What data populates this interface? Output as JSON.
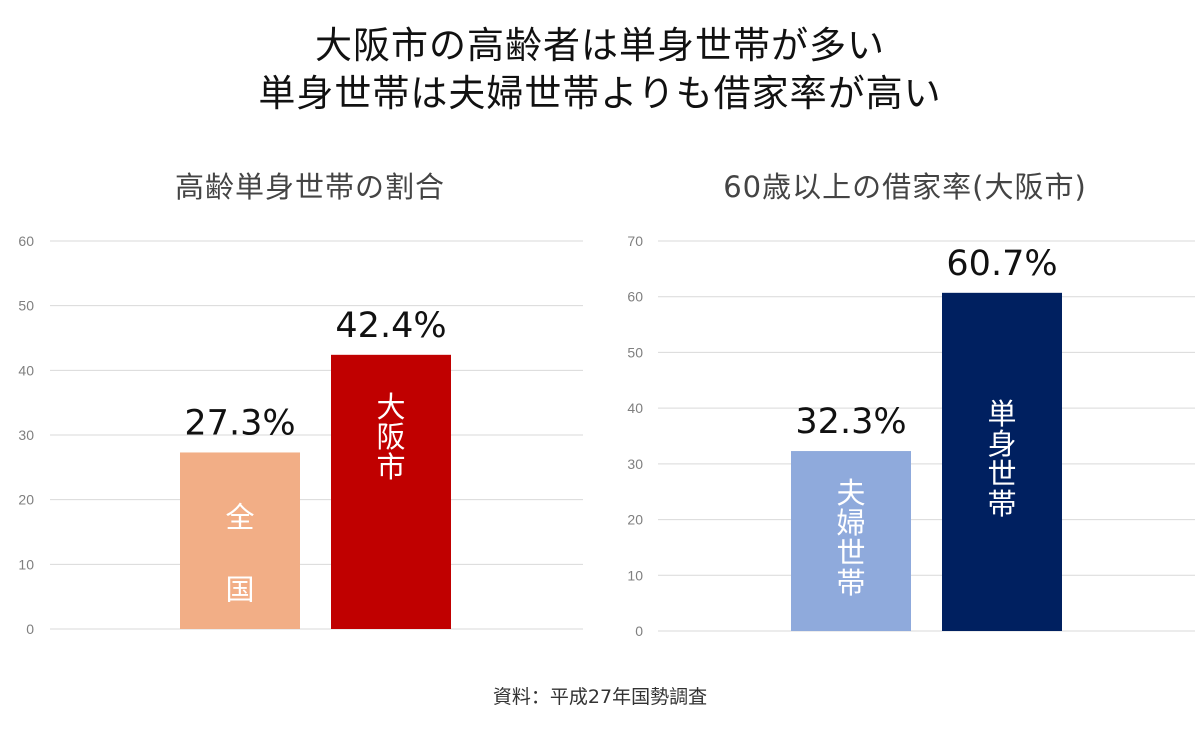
{
  "headline": {
    "line1": "大阪市の高齢者は単身世帯が多い",
    "line2": "単身世帯は夫婦世帯よりも借家率が高い"
  },
  "colors": {
    "zenkoku": "#f2ae86",
    "osaka": "#c00000",
    "fufu": "#8faadc",
    "tanshin": "#002060",
    "grid": "#d9d9d9",
    "tick": "#7f7f7f"
  },
  "chart_data": [
    {
      "type": "bar",
      "title": "高齢単身世帯の割合",
      "categories": [
        "全国",
        "大阪市"
      ],
      "values": [
        27.3,
        42.4
      ],
      "value_labels": [
        "27.3%",
        "42.4%"
      ],
      "colors": [
        "#f2ae86",
        "#c00000"
      ],
      "ylim": [
        0,
        60
      ],
      "yticks": [
        0,
        10,
        20,
        30,
        40,
        50,
        60
      ],
      "grid": true,
      "legend": "none"
    },
    {
      "type": "bar",
      "title": "60歳以上の借家率(大阪市)",
      "categories": [
        "夫婦世帯",
        "単身世帯"
      ],
      "values": [
        32.3,
        60.7
      ],
      "value_labels": [
        "32.3%",
        "60.7%"
      ],
      "colors": [
        "#8faadc",
        "#002060"
      ],
      "ylim": [
        0,
        70
      ],
      "yticks": [
        0,
        10,
        20,
        30,
        40,
        50,
        60,
        70
      ],
      "grid": true,
      "legend": "none"
    }
  ],
  "source": "資料：平成27年国勢調査"
}
